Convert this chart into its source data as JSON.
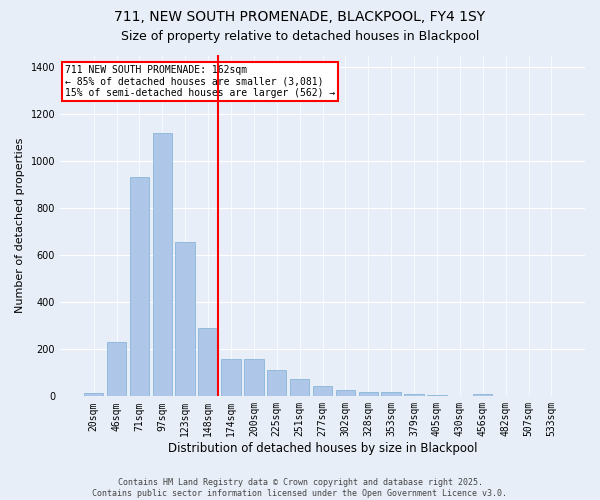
{
  "title1": "711, NEW SOUTH PROMENADE, BLACKPOOL, FY4 1SY",
  "title2": "Size of property relative to detached houses in Blackpool",
  "xlabel": "Distribution of detached houses by size in Blackpool",
  "ylabel": "Number of detached properties",
  "categories": [
    "20sqm",
    "46sqm",
    "71sqm",
    "97sqm",
    "123sqm",
    "148sqm",
    "174sqm",
    "200sqm",
    "225sqm",
    "251sqm",
    "277sqm",
    "302sqm",
    "328sqm",
    "353sqm",
    "379sqm",
    "405sqm",
    "430sqm",
    "456sqm",
    "482sqm",
    "507sqm",
    "533sqm"
  ],
  "values": [
    15,
    230,
    930,
    1120,
    655,
    290,
    160,
    160,
    110,
    75,
    42,
    28,
    20,
    20,
    12,
    5,
    0,
    8,
    0,
    0,
    0
  ],
  "bar_color": "#aec6e8",
  "bar_edge_color": "#7aafd4",
  "vline_x_index": 5.45,
  "vline_color": "red",
  "annotation_text": "711 NEW SOUTH PROMENADE: 162sqm\n← 85% of detached houses are smaller (3,081)\n15% of semi-detached houses are larger (562) →",
  "annotation_box_color": "white",
  "annotation_box_edgecolor": "red",
  "ylim": [
    0,
    1450
  ],
  "yticks": [
    0,
    200,
    400,
    600,
    800,
    1000,
    1200,
    1400
  ],
  "background_color": "#e8eef8",
  "grid_color": "white",
  "footer": "Contains HM Land Registry data © Crown copyright and database right 2025.\nContains public sector information licensed under the Open Government Licence v3.0.",
  "title_fontsize": 10,
  "subtitle_fontsize": 9,
  "bar_width": 0.85,
  "annotation_fontsize": 7,
  "ylabel_fontsize": 8,
  "xlabel_fontsize": 8.5,
  "tick_fontsize": 7
}
